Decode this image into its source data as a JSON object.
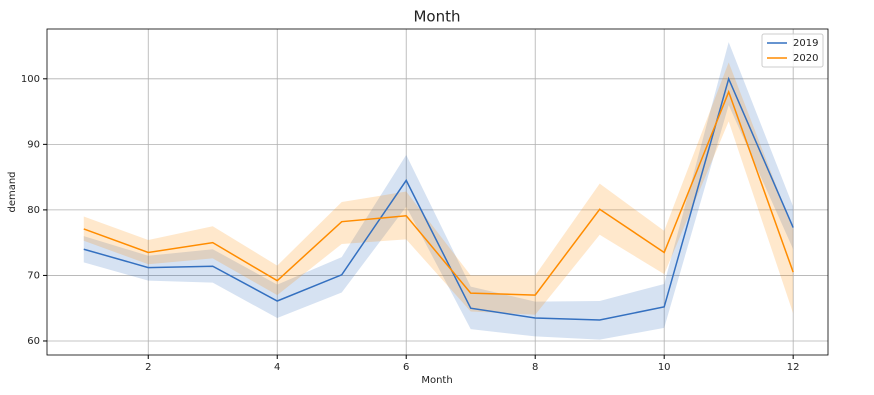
{
  "chart_data": {
    "type": "line",
    "title": "Month",
    "x_label": "Month",
    "y_label": "demand",
    "x": [
      1,
      2,
      3,
      4,
      5,
      6,
      7,
      8,
      9,
      10,
      11,
      12
    ],
    "series": [
      {
        "name": "2019",
        "color": "#3470c0",
        "values": [
          74,
          71.2,
          71.4,
          66.1,
          70.1,
          84.5,
          65,
          63.5,
          63.2,
          65.2,
          100,
          77.3
        ],
        "lower": [
          72,
          69.2,
          68.9,
          63.5,
          67.4,
          80.5,
          61.8,
          60.7,
          60.2,
          62,
          96,
          74
        ],
        "upper": [
          76,
          73,
          74,
          68.6,
          72.8,
          88.4,
          68.3,
          66,
          66.1,
          68.7,
          105.6,
          80.5
        ]
      },
      {
        "name": "2020",
        "color": "#ff8c00",
        "values": [
          77.1,
          73.5,
          75,
          69.2,
          78.2,
          79.1,
          67.3,
          67,
          80.1,
          73.5,
          98,
          70.5
        ],
        "lower": [
          75.3,
          71.7,
          72.6,
          67,
          74.8,
          75.5,
          64.5,
          64,
          76.2,
          70.2,
          93.5,
          64.2
        ],
        "upper": [
          79,
          75.4,
          77.5,
          71.5,
          81.2,
          82.8,
          70,
          70,
          84,
          76.8,
          102.5,
          77
        ]
      }
    ],
    "xlim": [
      0.43,
      12.54
    ],
    "ylim": [
      57.86,
      107.6
    ],
    "xticks": [
      2,
      4,
      6,
      8,
      10,
      12
    ],
    "yticks": [
      60,
      70,
      80,
      90,
      100
    ],
    "grid": true,
    "legend": "upper right"
  }
}
